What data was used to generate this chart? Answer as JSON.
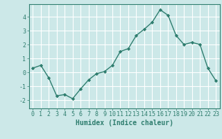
{
  "x": [
    0,
    1,
    2,
    3,
    4,
    5,
    6,
    7,
    8,
    9,
    10,
    11,
    12,
    13,
    14,
    15,
    16,
    17,
    18,
    19,
    20,
    21,
    22,
    23
  ],
  "y": [
    0.3,
    0.5,
    -0.4,
    -1.7,
    -1.6,
    -1.9,
    -1.2,
    -0.55,
    -0.1,
    0.05,
    0.5,
    1.5,
    1.7,
    2.65,
    3.1,
    3.6,
    4.5,
    4.1,
    2.65,
    2.0,
    2.15,
    2.0,
    0.3,
    -0.6
  ],
  "line_color": "#2e7d6e",
  "marker": "D",
  "marker_size": 2.2,
  "bg_color": "#cce8e8",
  "grid_color": "#ffffff",
  "xlabel": "Humidex (Indice chaleur)",
  "xlabel_fontsize": 7,
  "yticks": [
    -2,
    -1,
    0,
    1,
    2,
    3,
    4
  ],
  "xticks": [
    0,
    1,
    2,
    3,
    4,
    5,
    6,
    7,
    8,
    9,
    10,
    11,
    12,
    13,
    14,
    15,
    16,
    17,
    18,
    19,
    20,
    21,
    22,
    23
  ],
  "tick_fontsize": 6,
  "ylim": [
    -2.6,
    4.9
  ],
  "xlim": [
    -0.5,
    23.5
  ]
}
